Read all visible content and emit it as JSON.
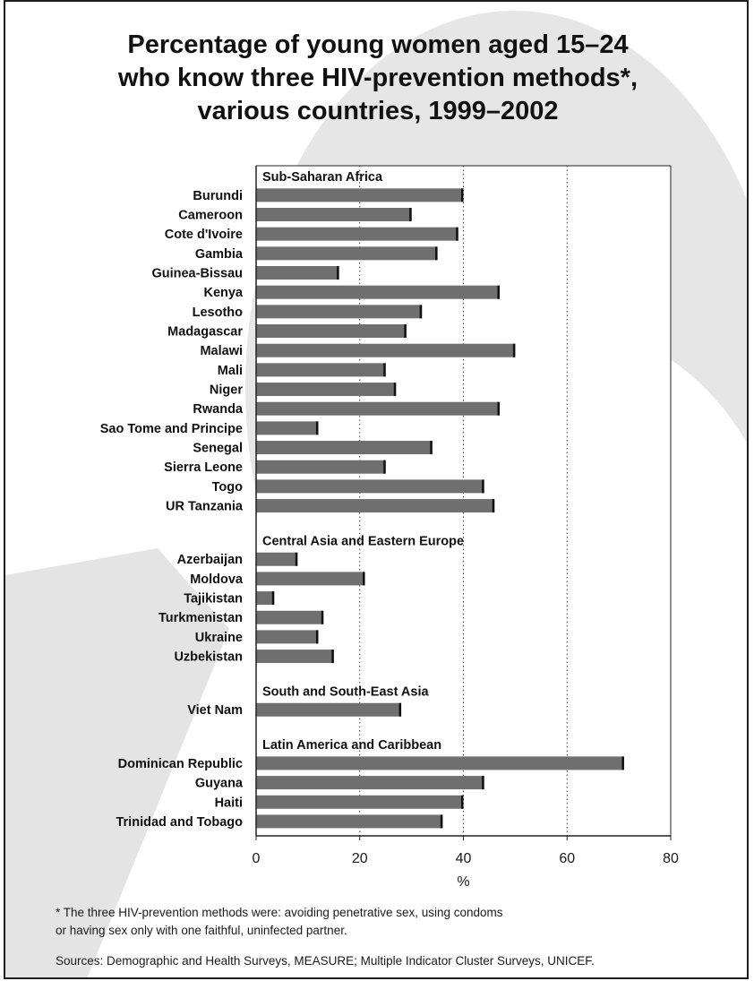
{
  "chart_data": {
    "type": "bar",
    "orientation": "horizontal",
    "title": "Percentage of young women aged 15–24\nwho know three HIV-prevention methods*,\nvarious countries, 1999–2002",
    "xlabel": "%",
    "xlim": [
      0,
      80
    ],
    "xticks": [
      0,
      20,
      40,
      60,
      80
    ],
    "grid": "vertical-dotted",
    "bar_color": "#6f6f6f",
    "groups": [
      {
        "name": "Sub-Saharan Africa",
        "categories": [
          "Burundi",
          "Cameroon",
          "Cote d'Ivoire",
          "Gambia",
          "Guinea-Bissau",
          "Kenya",
          "Lesotho",
          "Madagascar",
          "Malawi",
          "Mali",
          "Niger",
          "Rwanda",
          "Sao Tome and Principe",
          "Senegal",
          "Sierra Leone",
          "Togo",
          "UR Tanzania"
        ],
        "values": [
          40,
          30,
          39,
          35,
          16,
          47,
          32,
          29,
          50,
          25,
          27,
          47,
          12,
          34,
          25,
          44,
          46
        ]
      },
      {
        "name": "Central Asia and Eastern Europe",
        "categories": [
          "Azerbaijan",
          "Moldova",
          "Tajikistan",
          "Turkmenistan",
          "Ukraine",
          "Uzbekistan"
        ],
        "values": [
          8,
          21,
          3.5,
          13,
          12,
          15
        ]
      },
      {
        "name": "South and South-East Asia",
        "categories": [
          "Viet Nam"
        ],
        "values": [
          28
        ]
      },
      {
        "name": "Latin America and Caribbean",
        "categories": [
          "Dominican Republic",
          "Guyana",
          "Haiti",
          "Trinidad and Tobago"
        ],
        "values": [
          71,
          44,
          40,
          36
        ]
      }
    ]
  },
  "footnote": "* The three HIV-prevention methods were: avoiding penetrative sex, using condoms\nor having sex only with one faithful, uninfected partner.",
  "sources": "Sources:  Demographic and Health Surveys, MEASURE; Multiple Indicator Cluster Surveys, UNICEF."
}
